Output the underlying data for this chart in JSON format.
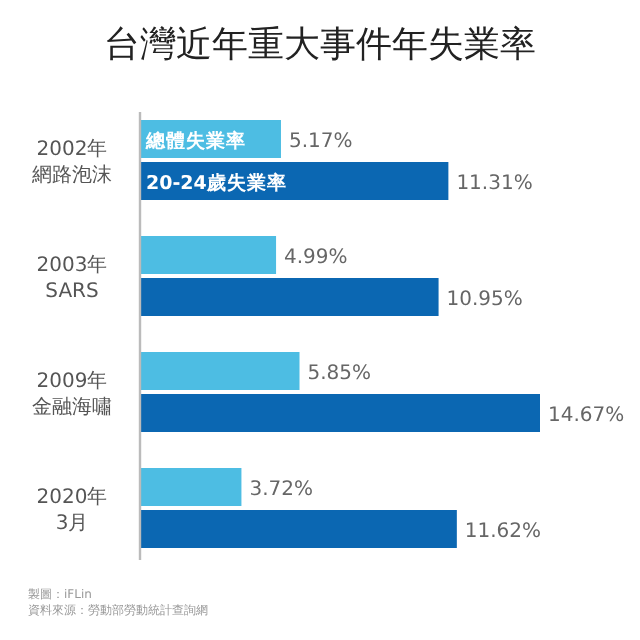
{
  "chart_data": {
    "type": "bar",
    "orientation": "horizontal",
    "title": "台灣近年重大事件年失業率",
    "categories": [
      "2002年網路泡沫",
      "2003年 SARS",
      "2009年金融海嘯",
      "2020年3月"
    ],
    "series": [
      {
        "name": "總體失業率",
        "color": "#4dbde3",
        "values": [
          5.17,
          4.99,
          5.85,
          3.72
        ],
        "value_labels": [
          "5.17%",
          "4.99%",
          "5.85%",
          "3.72%"
        ]
      },
      {
        "name": "20-24歲失業率",
        "color": "#0b67b2",
        "values": [
          11.31,
          10.95,
          14.67,
          11.62
        ],
        "value_labels": [
          "11.31%",
          "10.95%",
          "14.67%",
          "11.62%"
        ]
      }
    ],
    "legend": false,
    "annotations": [
      "製圖：iFLin",
      "資料來源：勞動部勞動統計查詢網"
    ]
  }
}
